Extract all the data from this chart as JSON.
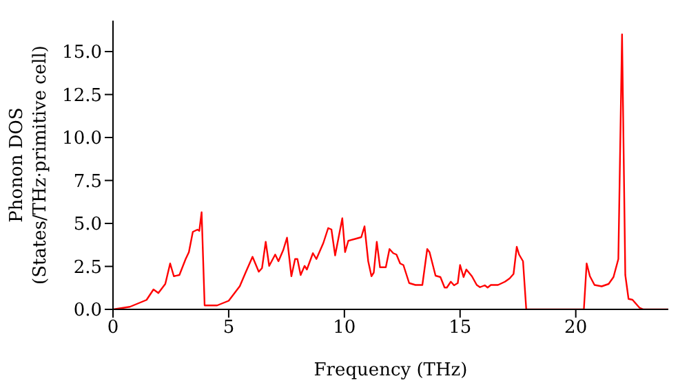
{
  "chart_data": {
    "type": "line",
    "xlabel": "Frequency (THz)",
    "ylabel": "Phonon DOS\n(States/THz·primitive cell)",
    "xlim": [
      0,
      24
    ],
    "ylim": [
      0,
      16.8
    ],
    "xticks": [
      0,
      5,
      10,
      15,
      20
    ],
    "yticks": [
      {
        "value": 0,
        "label": "0.0"
      },
      {
        "value": 2.5,
        "label": "2.5"
      },
      {
        "value": 5,
        "label": "5.0"
      },
      {
        "value": 7.5,
        "label": "7.5"
      },
      {
        "value": 10,
        "label": "10.0"
      },
      {
        "value": 12.5,
        "label": "12.5"
      },
      {
        "value": 15,
        "label": "15.0"
      }
    ],
    "grid": false,
    "legend": false,
    "marker": "none",
    "line_style": "solid",
    "series": [
      {
        "color": "#ff0000",
        "x": [
          0,
          0.73,
          1.45,
          1.75,
          1.96,
          2.26,
          2.47,
          2.63,
          2.87,
          3.14,
          3.28,
          3.45,
          3.65,
          3.73,
          3.83,
          3.96,
          4.5,
          5.0,
          5.48,
          5.73,
          6.03,
          6.3,
          6.44,
          6.6,
          6.75,
          7.01,
          7.15,
          7.36,
          7.52,
          7.71,
          7.87,
          7.97,
          8.11,
          8.28,
          8.38,
          8.64,
          8.79,
          9.09,
          9.3,
          9.44,
          9.6,
          9.91,
          10.03,
          10.17,
          10.52,
          10.73,
          10.87,
          11.03,
          11.17,
          11.27,
          11.4,
          11.54,
          11.79,
          11.95,
          12.11,
          12.25,
          12.41,
          12.55,
          12.8,
          13.07,
          13.37,
          13.58,
          13.68,
          13.94,
          14.15,
          14.33,
          14.43,
          14.6,
          14.74,
          14.9,
          15.0,
          15.15,
          15.27,
          15.51,
          15.72,
          15.86,
          16.07,
          16.19,
          16.33,
          16.64,
          16.94,
          17.14,
          17.31,
          17.45,
          17.55,
          17.72,
          17.86,
          20.35,
          20.47,
          20.61,
          20.81,
          21.12,
          21.42,
          21.63,
          21.84,
          22.0,
          22.14,
          22.28,
          22.45,
          22.75,
          22.92,
          24
        ],
        "values": [
          0,
          0.15,
          0.55,
          1.16,
          0.95,
          1.48,
          2.67,
          1.93,
          2.0,
          2.93,
          3.33,
          4.51,
          4.64,
          4.57,
          5.65,
          0.23,
          0.23,
          0.5,
          1.35,
          2.14,
          3.06,
          2.19,
          2.4,
          3.93,
          2.53,
          3.19,
          2.8,
          3.46,
          4.17,
          1.93,
          2.93,
          2.93,
          2.0,
          2.53,
          2.32,
          3.27,
          2.93,
          3.86,
          4.73,
          4.65,
          3.14,
          5.3,
          3.33,
          3.99,
          4.12,
          4.2,
          4.83,
          2.8,
          1.93,
          2.14,
          3.93,
          2.45,
          2.45,
          3.51,
          3.27,
          3.19,
          2.67,
          2.58,
          1.53,
          1.42,
          1.42,
          3.51,
          3.33,
          1.96,
          1.88,
          1.27,
          1.27,
          1.61,
          1.4,
          1.53,
          2.58,
          1.88,
          2.32,
          1.93,
          1.42,
          1.29,
          1.4,
          1.27,
          1.42,
          1.42,
          1.61,
          1.8,
          2.06,
          3.64,
          3.19,
          2.8,
          0,
          0,
          2.67,
          1.93,
          1.42,
          1.34,
          1.48,
          1.88,
          2.93,
          16.0,
          2.0,
          0.61,
          0.56,
          0.1,
          0,
          0
        ]
      }
    ]
  }
}
